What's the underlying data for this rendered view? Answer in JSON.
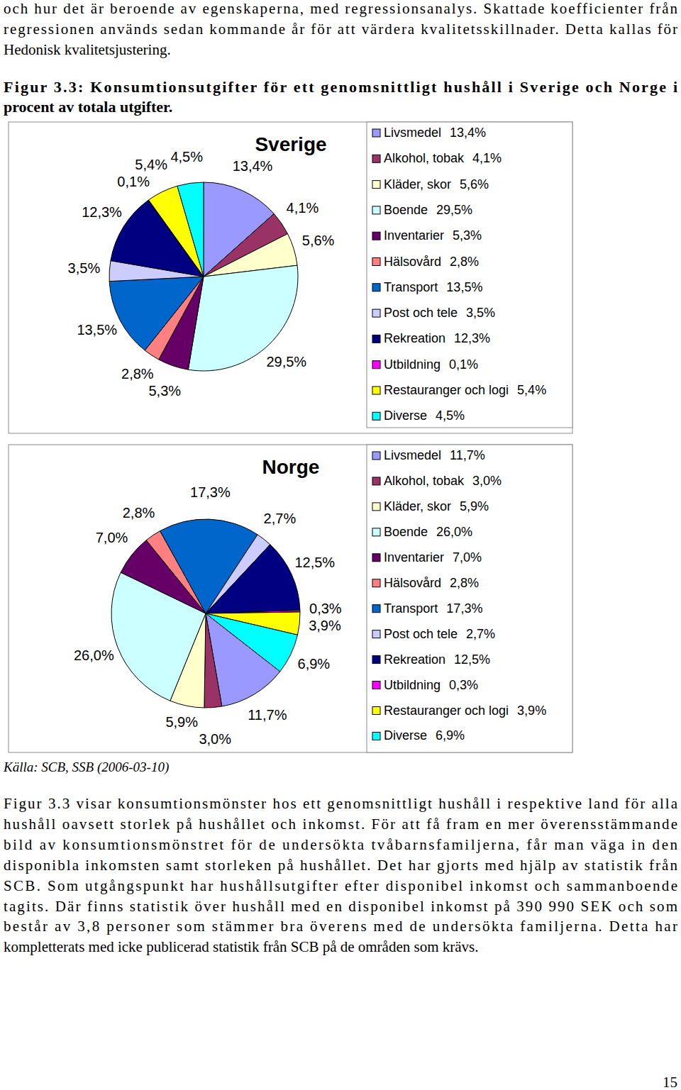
{
  "document": {
    "intro": [
      "och hur det är beroende av egenskaperna, med regressionsanalys. Skattade koefficienter från",
      "regressionen används sedan kommande år för att värdera kvalitetsskillnader. Detta kallas för",
      "Hedonisk kvalitetsjustering."
    ],
    "caption": [
      "Figur 3.3: Konsumtionsutgifter för ett genomsnittligt hushåll i Sverige och Norge i",
      "procent av totala utgifter."
    ],
    "source": "Källa: SCB, SSB (2006-03-10)",
    "paragraph": [
      "Figur 3.3 visar konsumtionsmönster hos ett genomsnittligt hushåll i respektive land för alla",
      "hushåll oavsett storlek på hushållet och inkomst. För att få fram en mer överensstämmande",
      "bild av konsumtionsmönstret för de undersökta tvåbarnsfamiljerna, får man väga in den",
      "disponibla inkomsten samt storleken på hushållet. Det har gjorts med hjälp av statistik från",
      "SCB. Som utgångspunkt har hushållsutgifter efter disponibel inkomst och sammanboende",
      "tagits. Där finns statistik över hushåll med en disponibel inkomst på 390 990 SEK och som",
      "består av 3,8 personer som stämmer bra överens med de undersökta familjerna. Detta har",
      "kompletterats med icke publicerad statistik från SCB på de områden som krävs."
    ],
    "page_number": "15"
  },
  "chart_data": [
    {
      "type": "pie",
      "title": "Sverige",
      "categories": [
        "Livsmedel",
        "Alkohol, tobak",
        "Kläder, skor",
        "Boende",
        "Inventarier",
        "Hälsovård",
        "Transport",
        "Post och tele",
        "Rekreation",
        "Utbildning",
        "Restauranger och logi",
        "Diverse"
      ],
      "values": [
        13.4,
        4.1,
        5.6,
        29.5,
        5.3,
        2.8,
        13.5,
        3.5,
        12.3,
        0.1,
        5.4,
        4.5
      ],
      "value_labels": [
        "13,4%",
        "4,1%",
        "5,6%",
        "29,5%",
        "5,3%",
        "2,8%",
        "13,5%",
        "3,5%",
        "12,3%",
        "0,1%",
        "5,4%",
        "4,5%"
      ],
      "colors": [
        "#9999FF",
        "#993366",
        "#FFFFCC",
        "#CCFFFF",
        "#660066",
        "#FF8080",
        "#0066CC",
        "#CCCCFF",
        "#000080",
        "#FF00FF",
        "#FFFF00",
        "#00FFFF"
      ],
      "data_labels": true,
      "legend": "right"
    },
    {
      "type": "pie",
      "title": "Norge",
      "categories": [
        "Livsmedel",
        "Alkohol, tobak",
        "Kläder, skor",
        "Boende",
        "Inventarier",
        "Hälsovård",
        "Transport",
        "Post och tele",
        "Rekreation",
        "Utbildning",
        "Restauranger och logi",
        "Diverse"
      ],
      "values": [
        11.7,
        3.0,
        5.9,
        26.0,
        7.0,
        2.8,
        17.3,
        2.7,
        12.5,
        0.3,
        3.9,
        6.9
      ],
      "value_labels": [
        "11,7%",
        "3,0%",
        "5,9%",
        "26,0%",
        "7,0%",
        "2,8%",
        "17,3%",
        "2,7%",
        "12,5%",
        "0,3%",
        "3,9%",
        "6,9%"
      ],
      "colors": [
        "#9999FF",
        "#993366",
        "#FFFFCC",
        "#CCFFFF",
        "#660066",
        "#FF8080",
        "#0066CC",
        "#CCCCFF",
        "#000080",
        "#FF00FF",
        "#FFFF00",
        "#00FFFF"
      ],
      "data_labels": true,
      "legend": "right"
    }
  ]
}
